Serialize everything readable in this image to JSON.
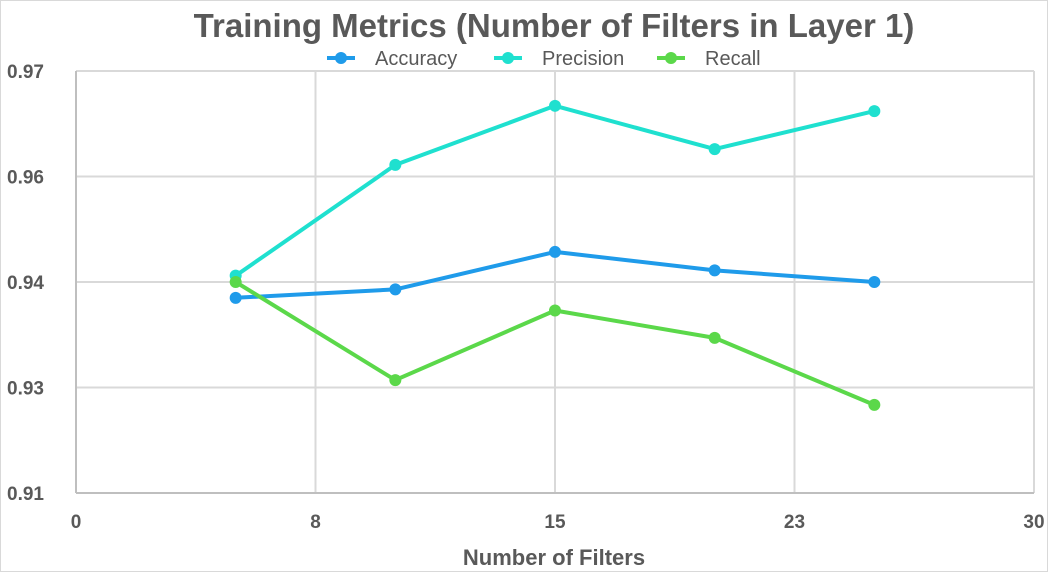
{
  "chart_data": {
    "type": "line",
    "title": "Training Metrics (Number of Filters in Layer 1)",
    "xlabel": "Number of Filters",
    "ylabel": "",
    "x": [
      5,
      10,
      15,
      20,
      25
    ],
    "xlim": [
      0,
      30
    ],
    "ylim": [
      0.91,
      0.97
    ],
    "x_ticks": [
      0,
      7.5,
      15,
      22.5,
      30
    ],
    "x_tick_labels": [
      "0",
      "8",
      "15",
      "23",
      "30"
    ],
    "y_ticks": [
      0.91,
      0.93,
      0.94,
      0.96,
      0.97
    ],
    "y_tick_labels": [
      "0.91",
      "0.93",
      "0.94",
      "0.96",
      "0.97"
    ],
    "y_tick_positions": [
      0,
      0.25,
      0.5,
      0.75,
      1
    ],
    "grid": true,
    "legend_position": "top",
    "series": [
      {
        "name": "Accuracy",
        "color": "#1f9bea",
        "values": [
          0.9385,
          0.9393,
          0.9457,
          0.9422,
          0.94
        ]
      },
      {
        "name": "Precision",
        "color": "#1fe0cf",
        "values": [
          0.9412,
          0.9611,
          0.9667,
          0.9626,
          0.9662
        ]
      },
      {
        "name": "Recall",
        "color": "#5bd84a",
        "values": [
          0.94,
          0.9307,
          0.9373,
          0.9347,
          0.9267
        ]
      }
    ]
  }
}
